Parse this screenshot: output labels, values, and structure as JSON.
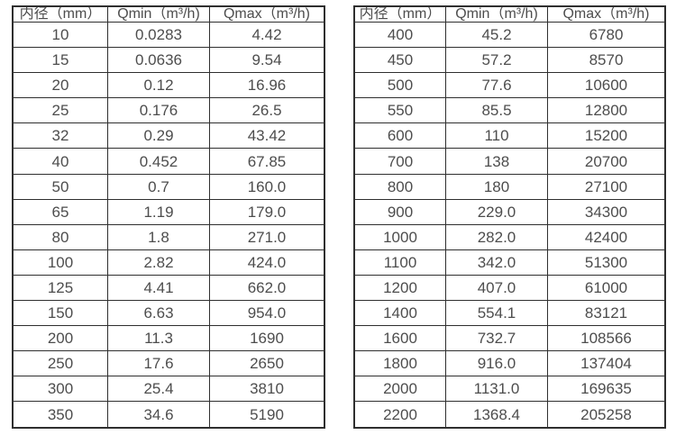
{
  "page": {
    "background_color": "#ffffff",
    "border_color": "#2f2f2f",
    "text_color": "#4d4d4d",
    "description": "Two flow-meter specification tables listing minimum and maximum flow rate per inner diameter"
  },
  "tables": [
    {
      "name": "diameter-flow-table-left",
      "headers": [
        "内径（mm）",
        "Qmin（m³/h)",
        "Qmax（m³/h)"
      ],
      "rows": [
        [
          "10",
          "0.0283",
          "4.42"
        ],
        [
          "15",
          "0.0636",
          "9.54"
        ],
        [
          "20",
          "0.12",
          "16.96"
        ],
        [
          "25",
          "0.176",
          "26.5"
        ],
        [
          "32",
          "0.29",
          "43.42"
        ],
        [
          "40",
          "0.452",
          "67.85"
        ],
        [
          "50",
          "0.7",
          "160.0"
        ],
        [
          "65",
          "1.19",
          "179.0"
        ],
        [
          "80",
          "1.8",
          "271.0"
        ],
        [
          "100",
          "2.82",
          "424.0"
        ],
        [
          "125",
          "4.41",
          "662.0"
        ],
        [
          "150",
          "6.63",
          "954.0"
        ],
        [
          "200",
          "11.3",
          "1690"
        ],
        [
          "250",
          "17.6",
          "2650"
        ],
        [
          "300",
          "25.4",
          "3810"
        ],
        [
          "350",
          "34.6",
          "5190"
        ]
      ]
    },
    {
      "name": "diameter-flow-table-right",
      "headers": [
        "内径（mm）",
        "Qmin（m³/h)",
        "Qmax（m³/h)"
      ],
      "rows": [
        [
          "400",
          "45.2",
          "6780"
        ],
        [
          "450",
          "57.2",
          "8570"
        ],
        [
          "500",
          "77.6",
          "10600"
        ],
        [
          "550",
          "85.5",
          "12800"
        ],
        [
          "600",
          "110",
          "15200"
        ],
        [
          "700",
          "138",
          "20700"
        ],
        [
          "800",
          "180",
          "27100"
        ],
        [
          "900",
          "229.0",
          "34300"
        ],
        [
          "1000",
          "282.0",
          "42400"
        ],
        [
          "1100",
          "342.0",
          "51300"
        ],
        [
          "1200",
          "407.0",
          "61000"
        ],
        [
          "1400",
          "554.1",
          "83121"
        ],
        [
          "1600",
          "732.7",
          "108566"
        ],
        [
          "1800",
          "916.0",
          "137404"
        ],
        [
          "2000",
          "1131.0",
          "169635"
        ],
        [
          "2200",
          "1368.4",
          "205258"
        ]
      ]
    }
  ]
}
